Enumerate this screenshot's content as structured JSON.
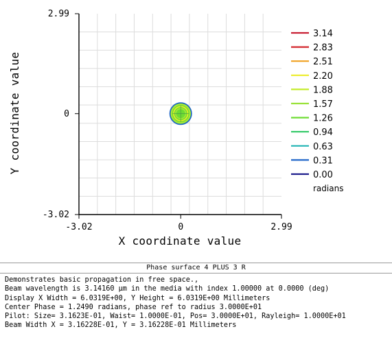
{
  "chart_data": {
    "type": "heatmap",
    "title": "",
    "xlabel": "X coordinate value",
    "ylabel": "Y coordinate value",
    "xlim": [
      -3.02,
      2.99
    ],
    "ylim": [
      -3.02,
      2.99
    ],
    "xticks": [
      "-3.02",
      "0",
      "2.99"
    ],
    "yticks": [
      "2.99",
      "0",
      "-3.02"
    ],
    "grid": true,
    "colorbar": {
      "unit": "radians",
      "levels": [
        {
          "label": "3.14",
          "color": "#c81e32"
        },
        {
          "label": "2.83",
          "color": "#d2232a"
        },
        {
          "label": "2.51",
          "color": "#f0a020"
        },
        {
          "label": "2.20",
          "color": "#ecec28"
        },
        {
          "label": "1.88",
          "color": "#c4ec28"
        },
        {
          "label": "1.57",
          "color": "#9ae23a"
        },
        {
          "label": "1.26",
          "color": "#6edc32"
        },
        {
          "label": "0.94",
          "color": "#2ec864"
        },
        {
          "label": "0.63",
          "color": "#20b4b4"
        },
        {
          "label": "0.31",
          "color": "#1e64c8"
        },
        {
          "label": "0.00",
          "color": "#1e1e8c"
        }
      ]
    },
    "beam": {
      "outer_radius": 0.32,
      "rings": [
        {
          "radius": 0.27,
          "color": "#a6e63a"
        },
        {
          "radius": 0.21,
          "color": "#ecec28"
        },
        {
          "radius": 0.15,
          "color": "#a6e63a"
        },
        {
          "radius": 0.03,
          "color": "#6edc32"
        }
      ]
    }
  },
  "panel": {
    "title": "Phase surface 4 PLUS 3 R",
    "notes": [
      "Demonstrates basic propagation in free space.,",
      "Beam wavelength is 3.14160 μm in the media with index 1.00000 at 0.0000 (deg)",
      "Display X Width = 6.0319E+00, Y Height = 6.0319E+00 Millimeters",
      "Center Phase = 1.2490 radians, phase ref to radius 3.0000E+01",
      "Pilot: Size= 3.1623E-01, Waist= 1.0000E-01, Pos= 3.0000E+01, Rayleigh= 1.0000E+01",
      "Beam Width X = 3.16228E-01, Y = 3.16228E-01 Millimeters"
    ]
  }
}
